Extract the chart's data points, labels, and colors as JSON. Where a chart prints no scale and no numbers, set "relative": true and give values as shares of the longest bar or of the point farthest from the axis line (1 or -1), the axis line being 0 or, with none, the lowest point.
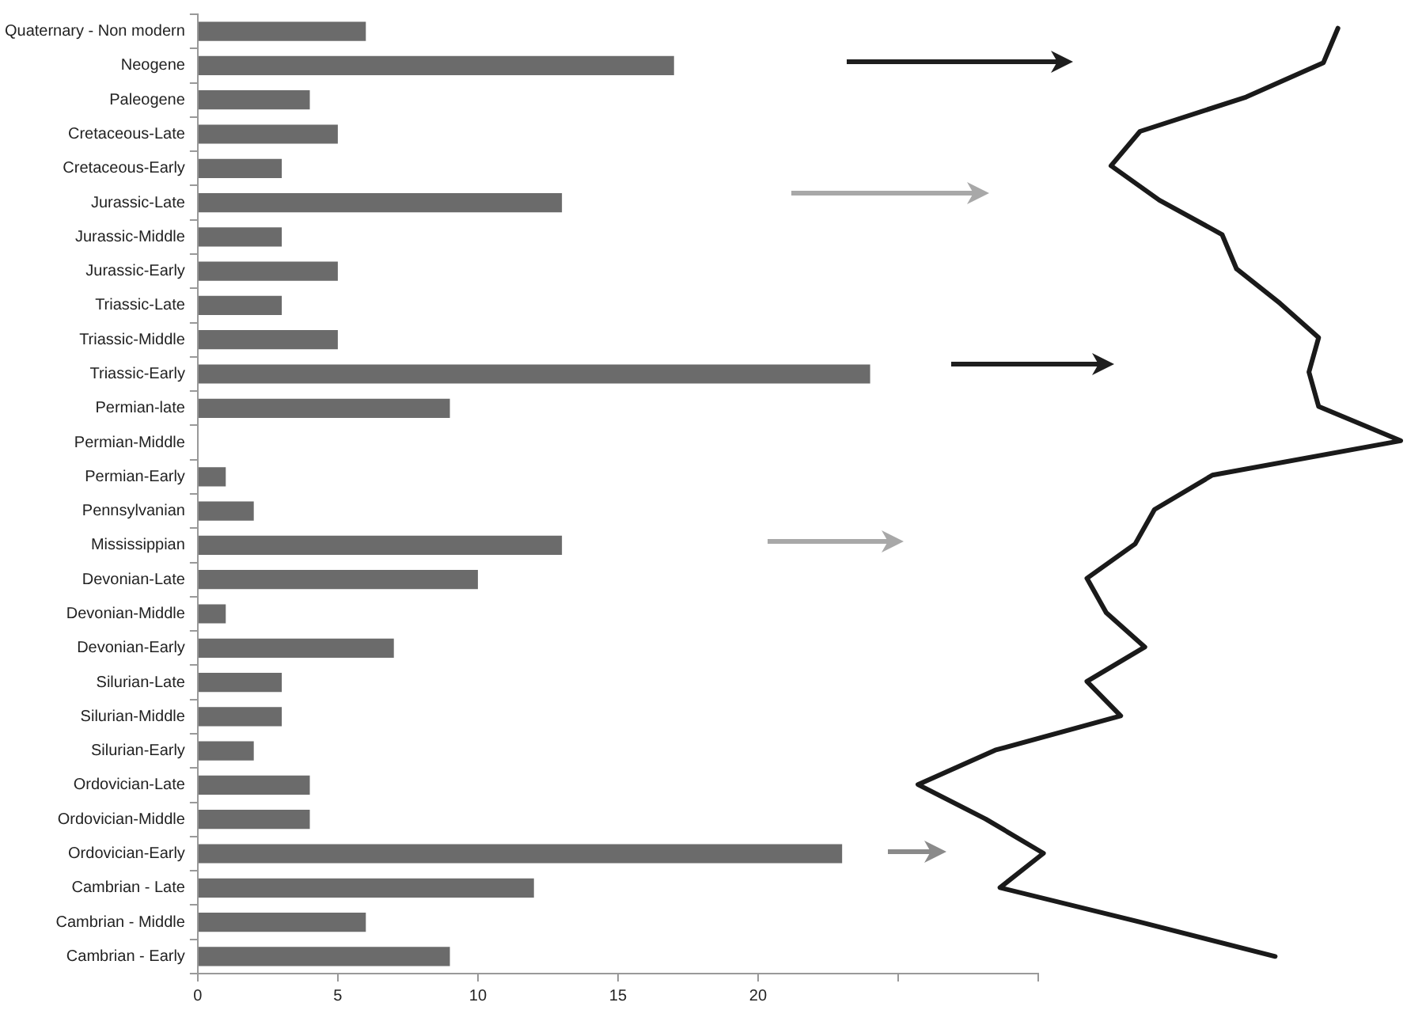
{
  "chart_data": [
    {
      "type": "bar",
      "orientation": "horizontal",
      "categories": [
        "Quaternary - Non modern",
        "Neogene",
        "Paleogene",
        "Cretaceous-Late",
        "Cretaceous-Early",
        "Jurassic-Late",
        "Jurassic-Middle",
        "Jurassic-Early",
        "Triassic-Late",
        "Triassic-Middle",
        "Triassic-Early",
        "Permian-late",
        "Permian-Middle",
        "Permian-Early",
        "Pennsylvanian",
        "Mississippian",
        "Devonian-Late",
        "Devonian-Middle",
        "Devonian-Early",
        "Silurian-Late",
        "Silurian-Middle",
        "Silurian-Early",
        "Ordovician-Late",
        "Ordovician-Middle",
        "Ordovician-Early",
        "Cambrian - Late",
        "Cambrian - Middle",
        "Cambrian - Early"
      ],
      "values": [
        6,
        17,
        4,
        5,
        3,
        13,
        3,
        5,
        3,
        5,
        24,
        9,
        0,
        1,
        2,
        13,
        10,
        1,
        7,
        3,
        3,
        2,
        4,
        4,
        23,
        12,
        6,
        9
      ],
      "color": "#6b6b6b",
      "xlim": [
        0,
        30
      ],
      "xticks": [
        0,
        5,
        10,
        15,
        20,
        {
          "value": 25,
          "label": null
        },
        {
          "value": 30,
          "label": null
        }
      ],
      "grid": false,
      "legend": false
    },
    {
      "type": "line",
      "orientation": "horizontal",
      "relative": true,
      "categories": [
        null,
        null,
        null,
        null,
        null,
        null,
        null,
        null,
        null,
        null,
        null,
        null,
        null,
        null,
        null,
        null,
        null,
        null,
        null,
        null,
        null,
        null,
        null,
        null,
        null,
        null,
        null,
        null
      ],
      "series": [
        {
          "color": "#1a1a1a",
          "values": [
            0.87,
            0.84,
            0.68,
            0.46,
            0.4,
            0.5,
            0.63,
            0.66,
            0.75,
            0.83,
            0.81,
            0.83,
            1,
            0.61,
            0.49,
            0.45,
            0.35,
            0.39,
            0.47,
            0.35,
            0.42,
            0.16,
            0,
            0.14,
            0.26,
            0.17,
            0.46,
            0.74
          ]
        }
      ],
      "marker": "none",
      "line_style": "solid",
      "grid": false,
      "legend": false
    }
  ]
}
